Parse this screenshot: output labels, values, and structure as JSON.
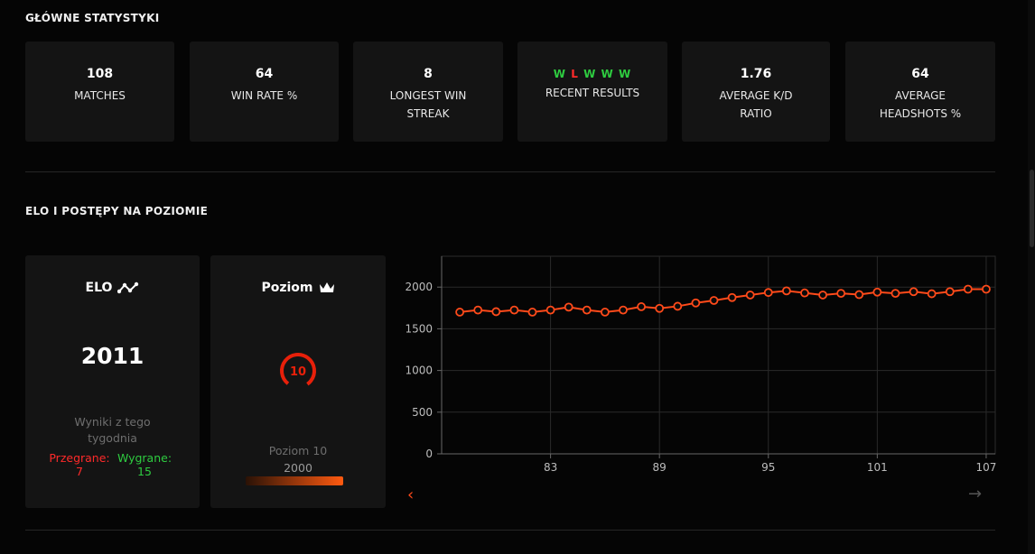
{
  "main_stats": {
    "title": "GŁÓWNE STATYSTYKI",
    "cards": [
      {
        "value": "108",
        "label": "MATCHES"
      },
      {
        "value": "64",
        "label": "WIN RATE %"
      },
      {
        "value": "8",
        "label": "LONGEST WIN STREAK"
      },
      {
        "value": "",
        "label": "RECENT RESULTS"
      },
      {
        "value": "1.76",
        "label": "AVERAGE K/D RATIO"
      },
      {
        "value": "64",
        "label": "AVERAGE HEADSHOTS %"
      }
    ],
    "recent_results": [
      "W",
      "L",
      "W",
      "W",
      "W"
    ]
  },
  "elo_section": {
    "title": "ELO I POSTĘPY NA POZIOMIE",
    "elo_card": {
      "title": "ELO",
      "value": "2011",
      "week_label": "Wyniki z tego tygodnia",
      "lost_label": "Przegrane:",
      "lost_value": "7",
      "won_label": "Wygrane:",
      "won_value": "15"
    },
    "level_card": {
      "title": "Poziom",
      "level": "10",
      "caption": "Poziom 10",
      "elo": "2000"
    }
  },
  "colors": {
    "win": "#2ecc40",
    "loss": "#ff2a2a",
    "accent": "#ff4a1a",
    "card_bg": "#141414"
  },
  "chart_data": {
    "type": "line",
    "x": [
      78,
      79,
      80,
      81,
      82,
      83,
      84,
      85,
      86,
      87,
      88,
      89,
      90,
      91,
      92,
      93,
      94,
      95,
      96,
      97,
      98,
      99,
      100,
      101,
      102,
      103,
      104,
      105,
      106,
      107
    ],
    "series": [
      {
        "values": [
          1700,
          1725,
          1705,
          1725,
          1700,
          1725,
          1760,
          1725,
          1700,
          1725,
          1765,
          1745,
          1770,
          1810,
          1840,
          1875,
          1905,
          1935,
          1955,
          1930,
          1905,
          1925,
          1910,
          1940,
          1925,
          1945,
          1920,
          1945,
          1975,
          1975
        ]
      }
    ],
    "xticks": [
      83,
      89,
      95,
      101,
      107
    ],
    "yticks": [
      0,
      500,
      1000,
      1500,
      2000
    ],
    "xlim": [
      77,
      107.5
    ],
    "ylim": [
      0,
      2370
    ],
    "grid": true,
    "color": "#ff4a1a"
  }
}
